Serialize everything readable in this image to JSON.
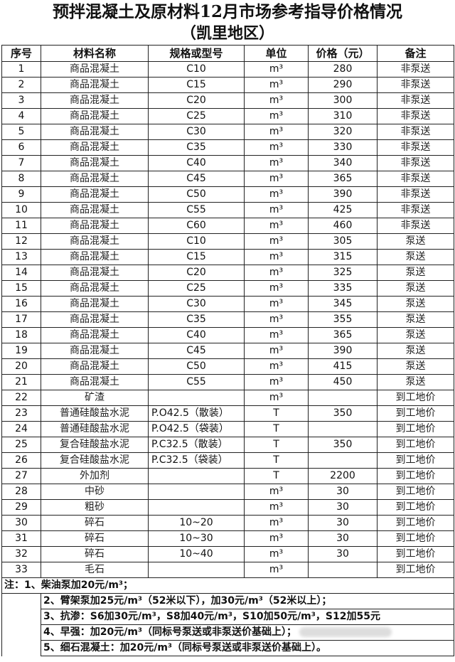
{
  "title": "预拌混凝土及原材料12月市场参考指导价格情况",
  "subtitle": "（凯里地区）",
  "columns": [
    "序号",
    "材料名称",
    "规格或型号",
    "单位",
    "价格（元）",
    "备注"
  ],
  "rows": [
    [
      "1",
      "商品混凝土",
      "C10",
      "m³",
      "280",
      "非泵送"
    ],
    [
      "2",
      "商品混凝土",
      "C15",
      "m³",
      "290",
      "非泵送"
    ],
    [
      "3",
      "商品混凝土",
      "C20",
      "m³",
      "300",
      "非泵送"
    ],
    [
      "4",
      "商品混凝土",
      "C25",
      "m³",
      "310",
      "非泵送"
    ],
    [
      "5",
      "商品混凝土",
      "C30",
      "m³",
      "320",
      "非泵送"
    ],
    [
      "6",
      "商品混凝土",
      "C35",
      "m³",
      "330",
      "非泵送"
    ],
    [
      "7",
      "商品混凝土",
      "C40",
      "m³",
      "340",
      "非泵送"
    ],
    [
      "8",
      "商品混凝土",
      "C45",
      "m³",
      "365",
      "非泵送"
    ],
    [
      "9",
      "商品混凝土",
      "C50",
      "m³",
      "390",
      "非泵送"
    ],
    [
      "10",
      "商品混凝土",
      "C55",
      "m³",
      "425",
      "非泵送"
    ],
    [
      "11",
      "商品混凝土",
      "C60",
      "m³",
      "460",
      "非泵送"
    ],
    [
      "12",
      "商品混凝土",
      "C10",
      "m³",
      "305",
      "泵送"
    ],
    [
      "13",
      "商品混凝土",
      "C15",
      "m³",
      "315",
      "泵送"
    ],
    [
      "14",
      "商品混凝土",
      "C20",
      "m³",
      "325",
      "泵送"
    ],
    [
      "15",
      "商品混凝土",
      "C25",
      "m³",
      "335",
      "泵送"
    ],
    [
      "16",
      "商品混凝土",
      "C30",
      "m³",
      "345",
      "泵送"
    ],
    [
      "17",
      "商品混凝土",
      "C35",
      "m³",
      "355",
      "泵送"
    ],
    [
      "18",
      "商品混凝土",
      "C40",
      "m³",
      "365",
      "泵送"
    ],
    [
      "19",
      "商品混凝土",
      "C45",
      "m³",
      "390",
      "泵送"
    ],
    [
      "20",
      "商品混凝土",
      "C50",
      "m³",
      "415",
      "泵送"
    ],
    [
      "21",
      "商品混凝土",
      "C55",
      "m³",
      "450",
      "泵送"
    ],
    [
      "22",
      "矿渣",
      "",
      "m³",
      "",
      "到工地价"
    ],
    [
      "23",
      "普通硅酸盐水泥",
      "P.O42.5（散装）",
      "T",
      "350",
      "到工地价"
    ],
    [
      "24",
      "普通硅酸盐水泥",
      "P.O42.5（袋装）",
      "T",
      "",
      "到工地价"
    ],
    [
      "25",
      "复合硅酸盐水泥",
      "P.C32.5（散装）",
      "T",
      "350",
      "到工地价"
    ],
    [
      "26",
      "复合硅酸盐水泥",
      "P.C32.5（袋装）",
      "T",
      "",
      "到工地价"
    ],
    [
      "27",
      "外加剂",
      "",
      "T",
      "2200",
      "到工地价"
    ],
    [
      "28",
      "中砂",
      "",
      "m³",
      "30",
      "到工地价"
    ],
    [
      "29",
      "粗砂",
      "",
      "m³",
      "30",
      "到工地价"
    ],
    [
      "30",
      "碎石",
      "10~20",
      "m³",
      "30",
      "到工地价"
    ],
    [
      "31",
      "碎石",
      "10~30",
      "m³",
      "30",
      "到工地价"
    ],
    [
      "32",
      "碎石",
      "10~40",
      "m³",
      "30",
      "到工地价"
    ],
    [
      "33",
      "毛石",
      "",
      "m³",
      "",
      "到工地价"
    ]
  ],
  "notes": [
    "注：1、柴油泵加20元/m³；",
    "2、臂架泵加25元/m³（52米以下），加30元/m³（52米以上）；",
    "3、抗渗：S6加30元/m³，S8加40元/m³，S10加50元/m³，S12加55元",
    "4、早强：加20元/m³（同标号泵送或非泵送价基础上）；",
    "5、细石混凝土：加20元/m³（同标号泵送或非泵送价基础上）。"
  ]
}
